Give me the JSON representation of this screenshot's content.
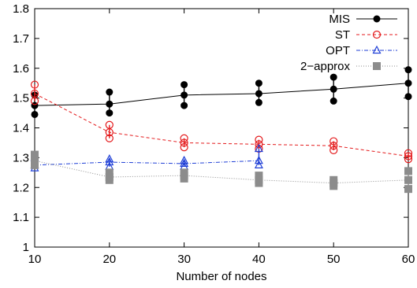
{
  "chart_data": {
    "type": "line",
    "title": "",
    "xlabel": "Number of nodes",
    "ylabel": "",
    "xlim": [
      10,
      60
    ],
    "ylim": [
      1,
      1.8
    ],
    "x_ticks": [
      "10",
      "20",
      "30",
      "40",
      "50",
      "60"
    ],
    "y_ticks": [
      "1",
      "1.1",
      "1.2",
      "1.3",
      "1.4",
      "1.5",
      "1.6",
      "1.7",
      "1.8"
    ],
    "legend_position": "top-right",
    "grid": false,
    "series": [
      {
        "name": "MIS",
        "color": "#000000",
        "marker": "filled-circle",
        "line": "solid",
        "x": [
          10,
          20,
          30,
          40,
          50,
          60
        ],
        "y": [
          1.475,
          1.48,
          1.51,
          1.515,
          1.53,
          1.55
        ],
        "spread": [
          [
            1.445,
            1.51
          ],
          [
            1.45,
            1.52
          ],
          [
            1.475,
            1.545
          ],
          [
            1.485,
            1.55
          ],
          [
            1.49,
            1.57
          ],
          [
            1.505,
            1.595
          ]
        ]
      },
      {
        "name": "ST",
        "color": "#e41a1c",
        "marker": "open-circle",
        "line": "dashed",
        "x": [
          10,
          20,
          30,
          40,
          50,
          60
        ],
        "y": [
          1.515,
          1.385,
          1.35,
          1.345,
          1.34,
          1.305
        ],
        "spread": [
          [
            1.49,
            1.545
          ],
          [
            1.365,
            1.41
          ],
          [
            1.335,
            1.365
          ],
          [
            1.33,
            1.36
          ],
          [
            1.325,
            1.355
          ],
          [
            1.295,
            1.315
          ]
        ]
      },
      {
        "name": "OPT",
        "color": "#1f3fd6",
        "marker": "open-triangle",
        "line": "dash-dot",
        "x": [
          10,
          20,
          30,
          40
        ],
        "y": [
          1.275,
          1.285,
          1.28,
          1.29
        ],
        "spread": [
          [
            1.265,
            1.3
          ],
          [
            1.27,
            1.295
          ],
          [
            1.27,
            1.29
          ],
          [
            1.275,
            1.33
          ]
        ]
      },
      {
        "name": "2−approx",
        "color": "#8c8c8c",
        "marker": "filled-square",
        "line": "dotted",
        "x": [
          10,
          20,
          30,
          40,
          50,
          60
        ],
        "y": [
          1.29,
          1.235,
          1.24,
          1.225,
          1.215,
          1.225
        ],
        "spread": [
          [
            1.275,
            1.31
          ],
          [
            1.225,
            1.25
          ],
          [
            1.23,
            1.25
          ],
          [
            1.215,
            1.24
          ],
          [
            1.205,
            1.225
          ],
          [
            1.195,
            1.255
          ]
        ]
      }
    ]
  }
}
